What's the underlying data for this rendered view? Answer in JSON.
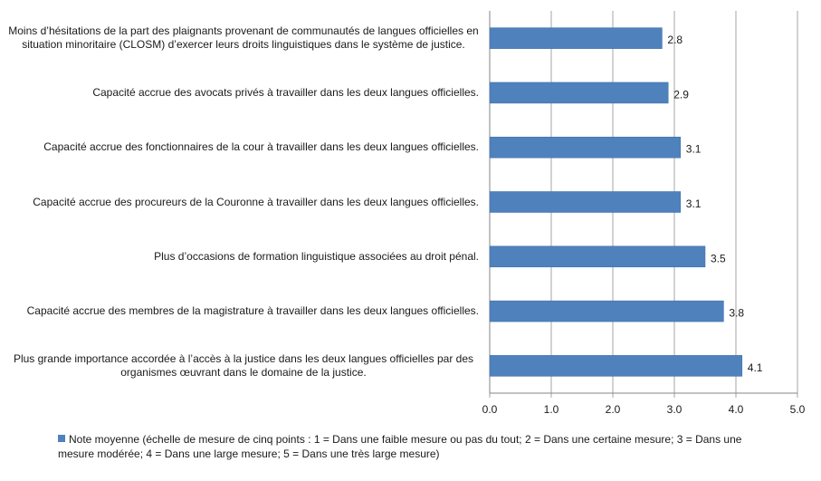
{
  "chart_data": {
    "type": "bar",
    "orientation": "horizontal",
    "categories": [
      "Moins d’hésitations de la part des plaignants provenant de communautés de langues officielles en situation minoritaire (CLOSM) d’exercer leurs droits linguistiques dans le système de justice.",
      "Capacité accrue des avocats privés à travailler dans les deux langues officielles.",
      "Capacité accrue des fonctionnaires de la cour à travailler dans les deux langues officielles.",
      "Capacité accrue des procureurs de la Couronne à travailler dans les deux langues officielles.",
      "Plus d’occasions de formation linguistique associées au droit pénal.",
      "Capacité accrue des membres de la magistrature à travailler dans les deux langues officielles.",
      "Plus grande importance accordée à l’accès à la justice dans les deux langues officielles par des organismes œuvrant dans le domaine de la justice."
    ],
    "series": [
      {
        "name": "Note moyenne (échelle de mesure de cinq points : 1 = Dans une faible mesure ou pas du tout; 2 = Dans une certaine mesure; 3 = Dans une mesure modérée; 4 = Dans une large mesure; 5 = Dans une très large mesure)",
        "values": [
          2.8,
          2.9,
          3.1,
          3.1,
          3.5,
          3.8,
          4.1
        ],
        "value_labels": [
          "2.8",
          "2.9",
          "3.1",
          "3.1",
          "3.5",
          "3.8",
          "4.1"
        ]
      }
    ],
    "xlim": [
      0,
      5
    ],
    "xticks": [
      "0.0",
      "1.0",
      "2.0",
      "3.0",
      "4.0",
      "5.0"
    ],
    "grid": "vertical",
    "legend_position": "bottom",
    "bar_color": "#4f81bd"
  }
}
